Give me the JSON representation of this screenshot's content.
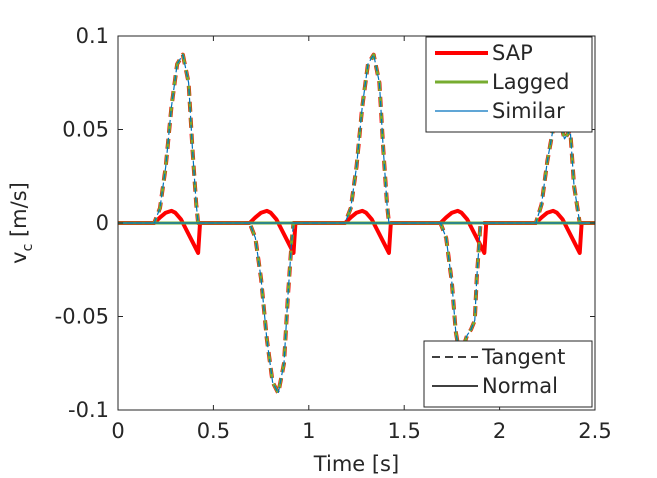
{
  "chart_data": {
    "type": "line",
    "title": "",
    "xlabel": "Time [s]",
    "ylabel": "v",
    "ylabel_sub": "c",
    "ylabel_unit": " [m/s]",
    "xlim": [
      0,
      2.5
    ],
    "ylim": [
      -0.1,
      0.1
    ],
    "xticks": [
      0,
      0.5,
      1,
      1.5,
      2,
      2.5
    ],
    "xtick_labels": [
      "0",
      "0.5",
      "1",
      "1.5",
      "2",
      "2.5"
    ],
    "yticks": [
      -0.1,
      -0.05,
      0,
      0.05,
      0.1
    ],
    "ytick_labels": [
      "-0.1",
      "-0.05",
      "0",
      "0.05",
      "0.1"
    ],
    "grid": false,
    "legend_series": {
      "placement": "top-right",
      "entries": [
        {
          "name": "SAP",
          "color": "#ff0000"
        },
        {
          "name": "Lagged",
          "color": "#77ac30"
        },
        {
          "name": "Similar",
          "color": "#0072bd"
        }
      ]
    },
    "legend_components": {
      "placement": "bottom-right",
      "entries": [
        {
          "name": "Tangent",
          "style": "dashed"
        },
        {
          "name": "Normal",
          "style": "solid"
        }
      ]
    },
    "series": [
      {
        "name": "SAP",
        "color": "#ff0000",
        "tangent": {
          "x": [
            0,
            0.19,
            0.22,
            0.25,
            0.28,
            0.31,
            0.34,
            0.37,
            0.39,
            0.41,
            0.42,
            0.5,
            0.69,
            0.72,
            0.75,
            0.78,
            0.81,
            0.84,
            0.87,
            0.89,
            0.91,
            0.92,
            1.0,
            1.19,
            1.22,
            1.25,
            1.28,
            1.31,
            1.34,
            1.37,
            1.39,
            1.41,
            1.42,
            1.5,
            1.69,
            1.72,
            1.75,
            1.77,
            1.79,
            1.81,
            1.83,
            1.85,
            1.87,
            1.88,
            1.9,
            2.0,
            2.19,
            2.22,
            2.25,
            2.28,
            2.3,
            2.32,
            2.34,
            2.36,
            2.37,
            2.39,
            2.42,
            2.45,
            2.5
          ],
          "y": [
            0,
            0,
            0.008,
            0.03,
            0.062,
            0.085,
            0.09,
            0.075,
            0.04,
            0.01,
            0,
            0,
            0,
            -0.008,
            -0.03,
            -0.062,
            -0.085,
            -0.091,
            -0.075,
            -0.04,
            -0.01,
            0,
            0,
            0,
            0.008,
            0.03,
            0.062,
            0.085,
            0.09,
            0.075,
            0.04,
            0.01,
            0,
            0,
            0,
            -0.008,
            -0.032,
            -0.058,
            -0.07,
            -0.066,
            -0.06,
            -0.057,
            -0.052,
            -0.03,
            0,
            0,
            0,
            0.01,
            0.033,
            0.05,
            0.058,
            0.053,
            0.045,
            0.048,
            0.05,
            0.02,
            0,
            0,
            0
          ]
        },
        "normal": {
          "x": [
            0,
            0.19,
            0.22,
            0.25,
            0.28,
            0.3,
            0.33,
            0.36,
            0.39,
            0.42,
            0.43,
            0.5,
            0.69,
            0.72,
            0.75,
            0.78,
            0.8,
            0.83,
            0.86,
            0.89,
            0.92,
            0.93,
            1.0,
            1.19,
            1.22,
            1.25,
            1.28,
            1.3,
            1.33,
            1.36,
            1.39,
            1.42,
            1.43,
            1.5,
            1.69,
            1.72,
            1.75,
            1.78,
            1.8,
            1.83,
            1.86,
            1.89,
            1.92,
            1.93,
            2.0,
            2.19,
            2.22,
            2.25,
            2.28,
            2.3,
            2.33,
            2.36,
            2.39,
            2.42,
            2.43,
            2.5
          ],
          "y": [
            0,
            0,
            0.003,
            0.0055,
            0.0065,
            0.0055,
            0.002,
            -0.004,
            -0.01,
            -0.016,
            0,
            0,
            0,
            0.003,
            0.0055,
            0.0065,
            0.0055,
            0.002,
            -0.004,
            -0.01,
            -0.016,
            0,
            0,
            0,
            0.003,
            0.0055,
            0.0065,
            0.0055,
            0.002,
            -0.004,
            -0.01,
            -0.016,
            0,
            0,
            0,
            0.003,
            0.0055,
            0.0065,
            0.0055,
            0.002,
            -0.004,
            -0.01,
            -0.016,
            0,
            0,
            0,
            0.003,
            0.0055,
            0.0065,
            0.0055,
            0.002,
            -0.004,
            -0.01,
            -0.016,
            0,
            0
          ]
        }
      },
      {
        "name": "Lagged",
        "color": "#77ac30",
        "tangent": {
          "x": [
            0,
            0.19,
            0.22,
            0.25,
            0.28,
            0.31,
            0.34,
            0.37,
            0.39,
            0.41,
            0.42,
            0.5,
            0.69,
            0.72,
            0.75,
            0.78,
            0.81,
            0.84,
            0.87,
            0.89,
            0.91,
            0.92,
            1.0,
            1.19,
            1.22,
            1.25,
            1.28,
            1.31,
            1.34,
            1.37,
            1.39,
            1.41,
            1.42,
            1.5,
            1.69,
            1.72,
            1.75,
            1.77,
            1.79,
            1.81,
            1.83,
            1.85,
            1.87,
            1.88,
            1.9,
            2.0,
            2.19,
            2.22,
            2.25,
            2.28,
            2.3,
            2.32,
            2.34,
            2.36,
            2.37,
            2.39,
            2.42,
            2.45,
            2.5
          ],
          "y": [
            0,
            0,
            0.008,
            0.03,
            0.062,
            0.085,
            0.09,
            0.075,
            0.04,
            0.01,
            0,
            0,
            0,
            -0.008,
            -0.03,
            -0.062,
            -0.085,
            -0.091,
            -0.075,
            -0.04,
            -0.01,
            0,
            0,
            0,
            0.008,
            0.03,
            0.062,
            0.085,
            0.09,
            0.075,
            0.04,
            0.01,
            0,
            0,
            0,
            -0.008,
            -0.032,
            -0.058,
            -0.07,
            -0.066,
            -0.06,
            -0.057,
            -0.052,
            -0.03,
            0,
            0,
            0,
            0.01,
            0.033,
            0.05,
            0.058,
            0.053,
            0.045,
            0.048,
            0.05,
            0.02,
            0,
            0,
            0
          ]
        },
        "normal": {
          "x": [
            0,
            2.5
          ],
          "y": [
            0,
            0
          ]
        }
      },
      {
        "name": "Similar",
        "color": "#0072bd",
        "tangent": {
          "x": [
            0,
            0.19,
            0.22,
            0.25,
            0.28,
            0.31,
            0.34,
            0.37,
            0.39,
            0.41,
            0.42,
            0.5,
            0.69,
            0.72,
            0.75,
            0.78,
            0.81,
            0.84,
            0.87,
            0.89,
            0.91,
            0.92,
            1.0,
            1.19,
            1.22,
            1.25,
            1.28,
            1.31,
            1.34,
            1.37,
            1.39,
            1.41,
            1.42,
            1.5,
            1.69,
            1.72,
            1.75,
            1.77,
            1.79,
            1.81,
            1.83,
            1.85,
            1.87,
            1.88,
            1.9,
            2.0,
            2.19,
            2.22,
            2.25,
            2.28,
            2.3,
            2.32,
            2.34,
            2.36,
            2.37,
            2.39,
            2.42,
            2.45,
            2.5
          ],
          "y": [
            0,
            0,
            0.008,
            0.03,
            0.062,
            0.085,
            0.09,
            0.075,
            0.04,
            0.01,
            0,
            0,
            0,
            -0.008,
            -0.03,
            -0.062,
            -0.085,
            -0.091,
            -0.075,
            -0.04,
            -0.01,
            0,
            0,
            0,
            0.008,
            0.03,
            0.062,
            0.085,
            0.09,
            0.075,
            0.04,
            0.01,
            0,
            0,
            0,
            -0.008,
            -0.032,
            -0.058,
            -0.07,
            -0.066,
            -0.06,
            -0.057,
            -0.052,
            -0.03,
            0,
            0,
            0,
            0.01,
            0.033,
            0.05,
            0.058,
            0.053,
            0.045,
            0.048,
            0.05,
            0.02,
            0,
            0,
            0
          ]
        },
        "normal": {
          "x": [
            0,
            2.5
          ],
          "y": [
            0,
            0
          ]
        }
      }
    ]
  }
}
